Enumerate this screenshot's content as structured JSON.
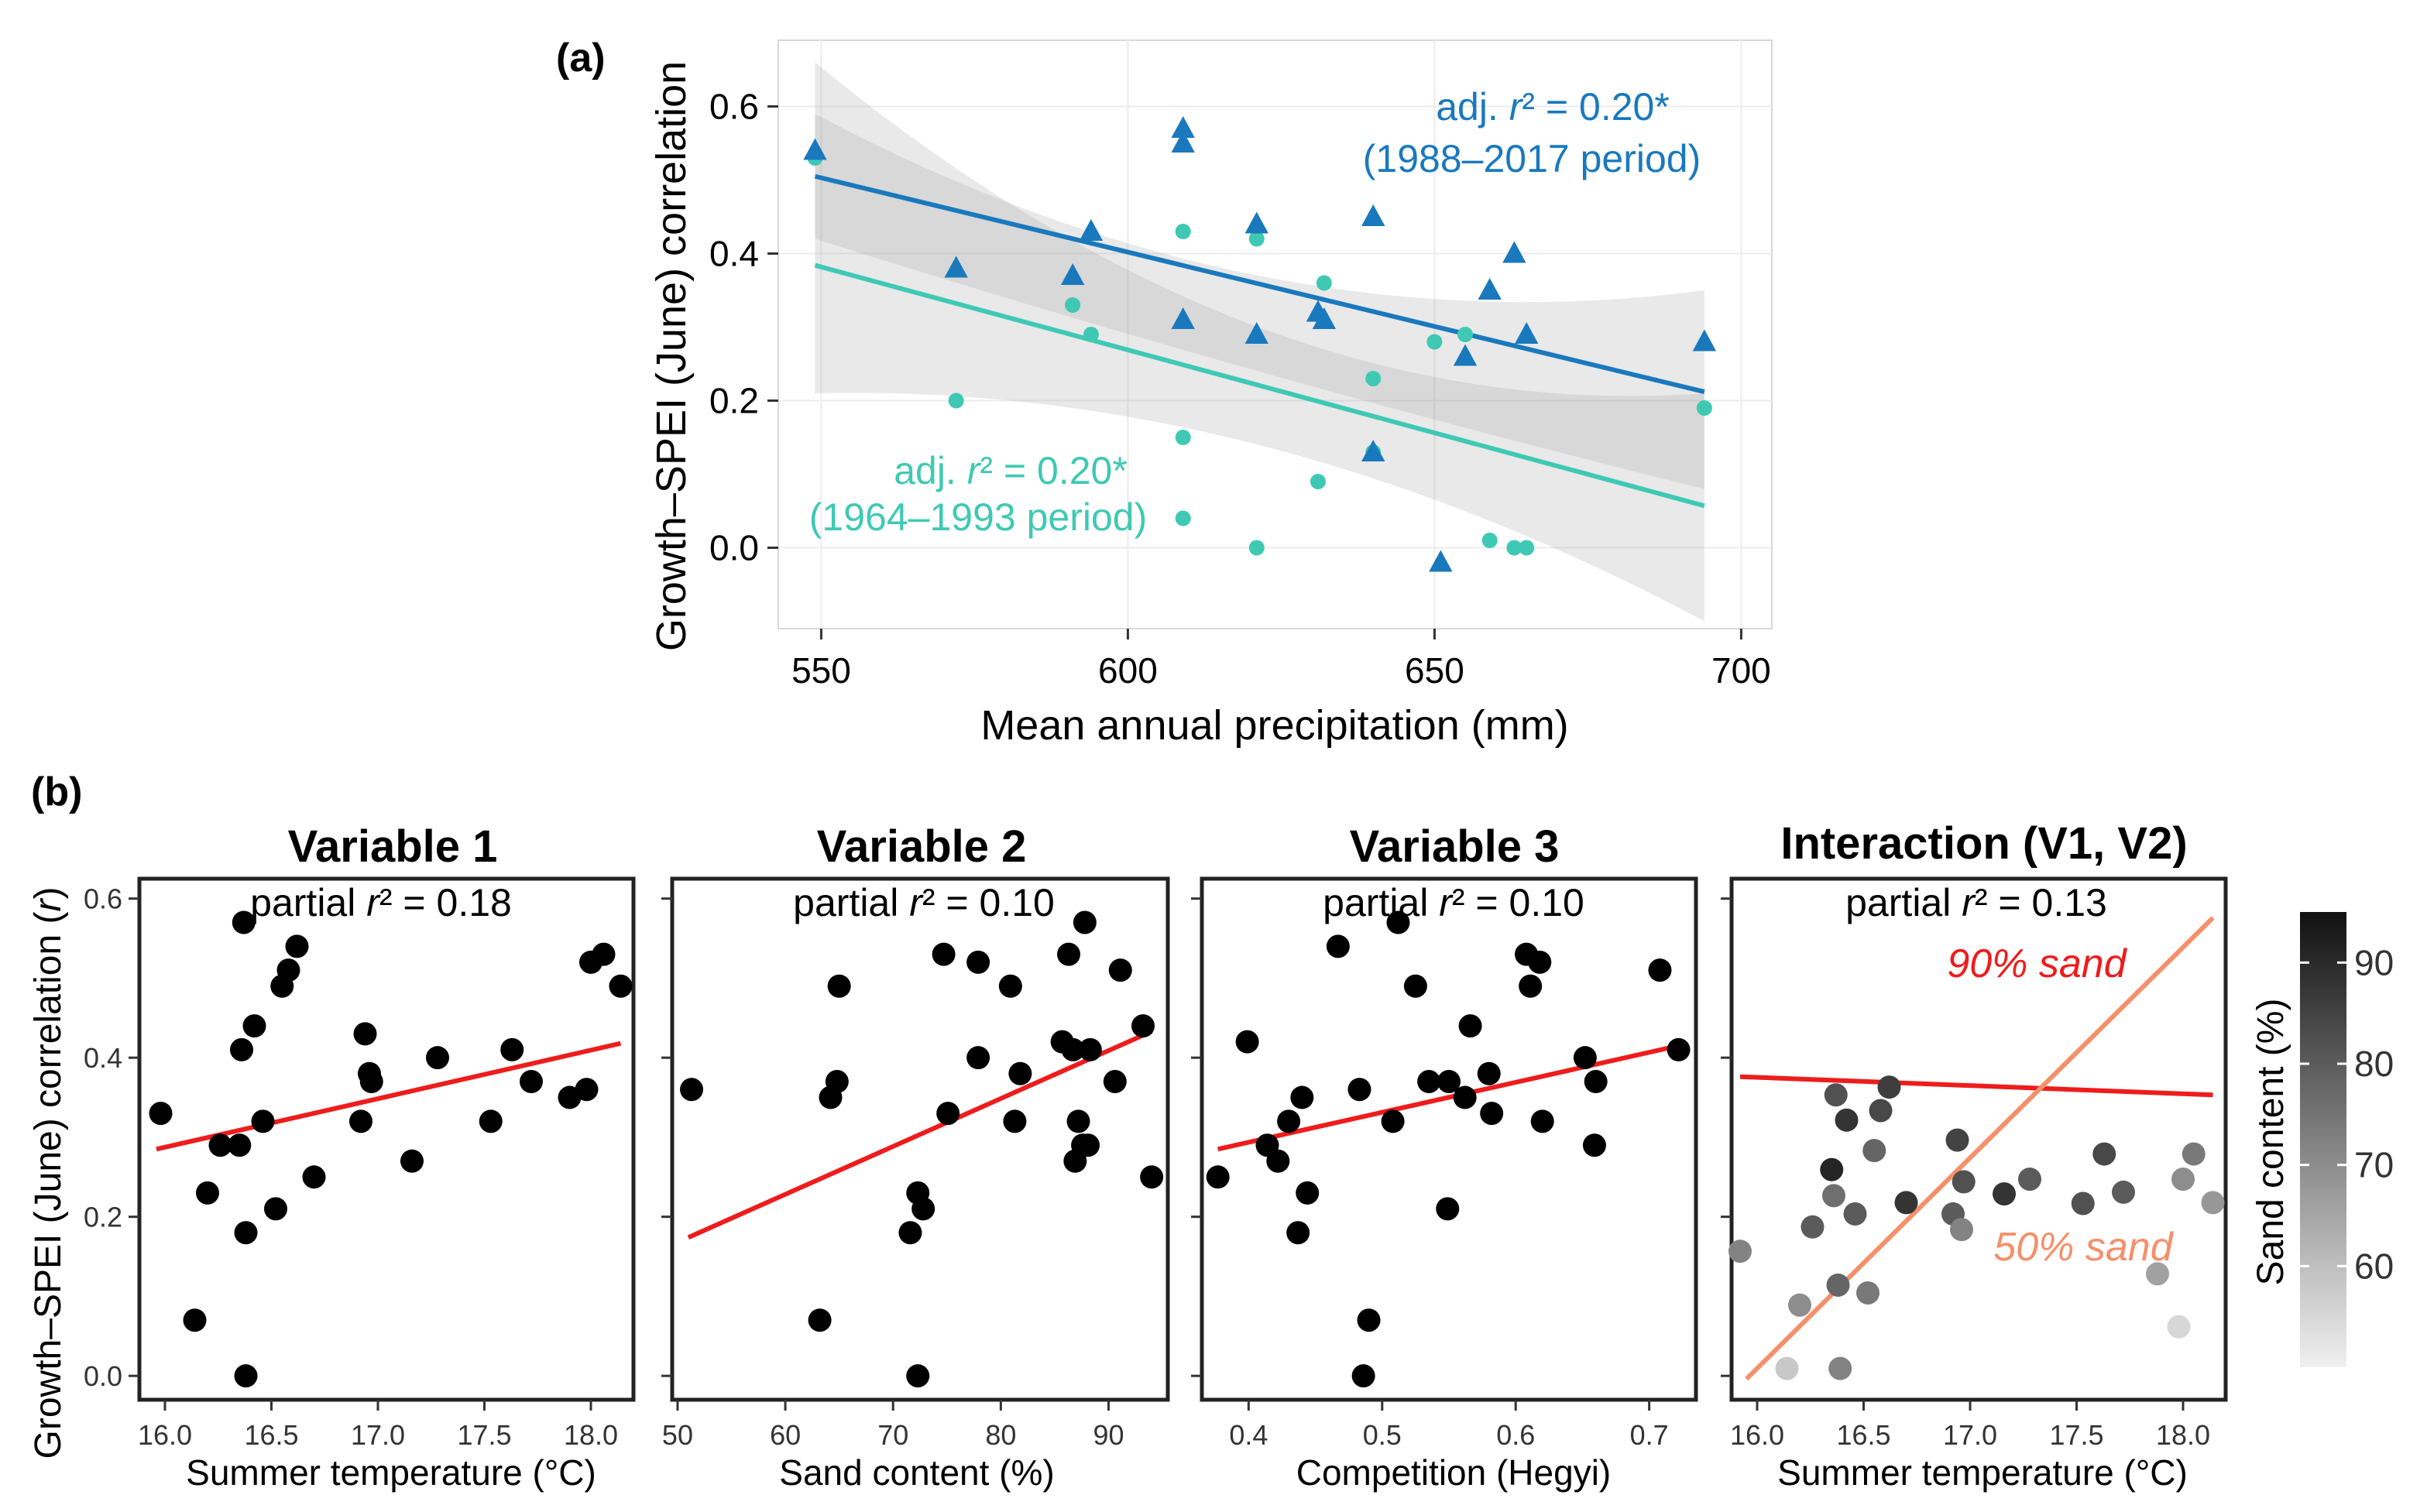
{
  "figure": {
    "panel_a_label": "(a)",
    "panel_b_label": "(b)"
  },
  "chart_data": [
    {
      "id": "a",
      "type": "scatter",
      "xlabel": "Mean annual precipitation (mm)",
      "ylabel": "Growth–SPEI (June) correlation",
      "xlim": [
        543,
        705
      ],
      "ylim": [
        -0.11,
        0.69
      ],
      "xticks": [
        550,
        600,
        650,
        700
      ],
      "yticks": [
        0.0,
        0.2,
        0.4,
        0.6
      ],
      "ytick_labels": [
        "0.0",
        "0.2",
        "0.4",
        "0.6"
      ],
      "grid": true,
      "series": [
        {
          "name": "1988–2017 period",
          "marker": "triangle",
          "color": "#1a79bd",
          "x": [
            549,
            572,
            591,
            594,
            609,
            609,
            609,
            621,
            621,
            631,
            632,
            640,
            640,
            651,
            655,
            659,
            663,
            665,
            694
          ],
          "y": [
            0.54,
            0.38,
            0.37,
            0.43,
            0.57,
            0.55,
            0.31,
            0.44,
            0.29,
            0.32,
            0.31,
            0.45,
            0.13,
            -0.02,
            0.26,
            0.35,
            0.4,
            0.29,
            0.28
          ],
          "fit": {
            "x0": 549,
            "y0": 0.505,
            "x1": 694,
            "y1": 0.212
          },
          "ci": {
            "lower": [
              0.42,
              0.24,
              0.08
            ],
            "upper": [
              0.59,
              0.37,
              0.35
            ],
            "x": [
              549,
              621,
              694
            ]
          },
          "annotation": {
            "line1_prefix": "adj. ",
            "line1_r": "r",
            "line1_suffix": "² = 0.20*",
            "line2": "(1988–2017 period)"
          }
        },
        {
          "name": "1964–1993 period",
          "marker": "circle",
          "color": "#3fc9b4",
          "x": [
            549,
            572,
            591,
            594,
            609,
            609,
            609,
            621,
            621,
            631,
            632,
            640,
            640,
            650,
            655,
            659,
            663,
            665,
            694
          ],
          "y": [
            0.53,
            0.2,
            0.33,
            0.29,
            0.43,
            0.15,
            0.04,
            0.42,
            0.0,
            0.09,
            0.36,
            0.23,
            0.13,
            0.28,
            0.29,
            0.01,
            0.0,
            0.0,
            0.19
          ],
          "fit": {
            "x0": 549,
            "y0": 0.384,
            "x1": 694,
            "y1": 0.057
          },
          "ci": {
            "lower": [
              0.21,
              0.14,
              -0.1
            ],
            "upper": [
              0.66,
              0.3,
              0.21
            ],
            "x": [
              549,
              621,
              694
            ]
          },
          "annotation": {
            "line1_prefix": "adj. ",
            "line1_r": "r",
            "line1_suffix": "² = 0.20*",
            "line2": "(1964–1993 period)"
          }
        }
      ]
    },
    {
      "id": "b1",
      "type": "scatter",
      "title": "Variable 1",
      "subtitle_prefix": "partial ",
      "subtitle_r": "r",
      "subtitle_suffix": "² = 0.18",
      "xlabel": "Summer temperature (°C)",
      "ylabel_prefix": "Growth–SPEI (June) correlation (",
      "ylabel_r": "r",
      "ylabel_suffix": ")",
      "xlim": [
        15.88,
        18.2
      ],
      "ylim": [
        -0.03,
        0.625
      ],
      "xticks": [
        16.0,
        16.5,
        17.0,
        17.5,
        18.0
      ],
      "xtick_labels": [
        "16.0",
        "16.5",
        "17.0",
        "17.5",
        "18.0"
      ],
      "yticks": [
        0.0,
        0.2,
        0.4,
        0.6
      ],
      "ytick_labels": [
        "0.0",
        "0.2",
        "0.4",
        "0.6"
      ],
      "x": [
        15.98,
        16.14,
        16.2,
        16.26,
        16.35,
        16.36,
        16.37,
        16.38,
        16.38,
        16.42,
        16.46,
        16.52,
        16.55,
        16.58,
        16.62,
        16.7,
        16.92,
        16.94,
        16.96,
        16.97,
        17.16,
        17.28,
        17.53,
        17.63,
        17.72,
        17.9,
        17.98,
        18.0,
        18.06,
        18.14
      ],
      "y": [
        0.33,
        0.07,
        0.23,
        0.29,
        0.29,
        0.41,
        0.57,
        0.18,
        0.0,
        0.44,
        0.32,
        0.21,
        0.49,
        0.51,
        0.54,
        0.25,
        0.32,
        0.43,
        0.38,
        0.37,
        0.27,
        0.4,
        0.32,
        0.41,
        0.37,
        0.35,
        0.36,
        0.52,
        0.53,
        0.49
      ],
      "fit": {
        "x0": 15.96,
        "y0": 0.285,
        "x1": 18.14,
        "y1": 0.418
      }
    },
    {
      "id": "b2",
      "type": "scatter",
      "title": "Variable 2",
      "subtitle_prefix": "partial ",
      "subtitle_r": "r",
      "subtitle_suffix": "² = 0.10",
      "xlabel": "Sand content (%)",
      "xlim": [
        49.5,
        95.5
      ],
      "ylim": [
        -0.03,
        0.625
      ],
      "xticks": [
        50,
        60,
        70,
        80,
        90
      ],
      "xtick_labels": [
        "50",
        "60",
        "70",
        "80",
        "90"
      ],
      "yticks": [
        0.0,
        0.2,
        0.4,
        0.6
      ],
      "x": [
        51.3,
        63.2,
        64.2,
        64.8,
        65.0,
        71.6,
        72.3,
        72.3,
        72.8,
        74.7,
        75.1,
        77.9,
        77.9,
        80.9,
        81.3,
        81.8,
        85.7,
        86.3,
        86.7,
        86.9,
        87.2,
        87.6,
        87.8,
        88.1,
        88.3,
        90.6,
        91.1,
        93.2,
        94.0
      ],
      "y": [
        0.36,
        0.07,
        0.35,
        0.37,
        0.49,
        0.18,
        0.23,
        0.0,
        0.21,
        0.53,
        0.33,
        0.52,
        0.4,
        0.49,
        0.32,
        0.38,
        0.42,
        0.53,
        0.41,
        0.27,
        0.32,
        0.29,
        0.57,
        0.29,
        0.41,
        0.37,
        0.51,
        0.44,
        0.25
      ],
      "fit": {
        "x0": 51.0,
        "y0": 0.174,
        "x1": 94.0,
        "y1": 0.433
      }
    },
    {
      "id": "b3",
      "type": "scatter",
      "title": "Variable 3",
      "subtitle_prefix": "partial ",
      "subtitle_r": "r",
      "subtitle_suffix": "² = 0.10",
      "xlabel": "Competition (Hegyi)",
      "xlim": [
        0.365,
        0.735
      ],
      "ylim": [
        -0.03,
        0.625
      ],
      "xticks": [
        0.4,
        0.5,
        0.6,
        0.7
      ],
      "xtick_labels": [
        "0.4",
        "0.5",
        "0.6",
        "0.7"
      ],
      "yticks": [
        0.0,
        0.2,
        0.4,
        0.6
      ],
      "x": [
        0.377,
        0.399,
        0.414,
        0.422,
        0.43,
        0.437,
        0.44,
        0.444,
        0.467,
        0.483,
        0.486,
        0.49,
        0.508,
        0.512,
        0.525,
        0.535,
        0.549,
        0.55,
        0.562,
        0.566,
        0.58,
        0.582,
        0.608,
        0.611,
        0.618,
        0.62,
        0.652,
        0.659,
        0.66,
        0.708,
        0.722
      ],
      "y": [
        0.25,
        0.42,
        0.29,
        0.27,
        0.32,
        0.18,
        0.35,
        0.23,
        0.54,
        0.36,
        0.0,
        0.07,
        0.32,
        0.57,
        0.49,
        0.37,
        0.21,
        0.37,
        0.35,
        0.44,
        0.38,
        0.33,
        0.53,
        0.49,
        0.52,
        0.32,
        0.4,
        0.29,
        0.37,
        0.51,
        0.41
      ],
      "fit": {
        "x0": 0.377,
        "y0": 0.285,
        "x1": 0.722,
        "y1": 0.415
      }
    },
    {
      "id": "b4",
      "type": "scatter",
      "title": "Interaction (V1, V2)",
      "subtitle_prefix": "partial ",
      "subtitle_r": "r",
      "subtitle_suffix": "² = 0.13",
      "xlabel": "Summer temperature (°C)",
      "xlim": [
        15.88,
        18.2
      ],
      "xticks": [
        16.0,
        16.5,
        17.0,
        17.5,
        18.0
      ],
      "xtick_labels": [
        "16.0",
        "16.5",
        "17.0",
        "17.5",
        "18.0"
      ],
      "colorbar": {
        "title": "Sand content (%)",
        "ticks": [
          60,
          70,
          80,
          90
        ],
        "tick_labels": [
          "60",
          "70",
          "80",
          "90"
        ],
        "min": 50,
        "max": 95
      },
      "points": [
        {
          "t": 15.92,
          "sand": 72
        },
        {
          "t": 16.14,
          "sand": 58
        },
        {
          "t": 16.2,
          "sand": 70
        },
        {
          "t": 16.26,
          "sand": 80
        },
        {
          "t": 16.35,
          "sand": 91
        },
        {
          "t": 16.36,
          "sand": 76
        },
        {
          "t": 16.37,
          "sand": 82
        },
        {
          "t": 16.38,
          "sand": 78
        },
        {
          "t": 16.39,
          "sand": 72
        },
        {
          "t": 16.42,
          "sand": 88
        },
        {
          "t": 16.46,
          "sand": 80
        },
        {
          "t": 16.52,
          "sand": 74
        },
        {
          "t": 16.55,
          "sand": 78
        },
        {
          "t": 16.58,
          "sand": 84
        },
        {
          "t": 16.62,
          "sand": 86
        },
        {
          "t": 16.7,
          "sand": 88
        },
        {
          "t": 16.92,
          "sand": 80
        },
        {
          "t": 16.94,
          "sand": 85
        },
        {
          "t": 16.96,
          "sand": 72
        },
        {
          "t": 16.97,
          "sand": 82
        },
        {
          "t": 17.16,
          "sand": 88
        },
        {
          "t": 17.28,
          "sand": 80
        },
        {
          "t": 17.53,
          "sand": 82
        },
        {
          "t": 17.63,
          "sand": 84
        },
        {
          "t": 17.72,
          "sand": 80
        },
        {
          "t": 17.88,
          "sand": 66
        },
        {
          "t": 17.98,
          "sand": 55
        },
        {
          "t": 18.0,
          "sand": 70
        },
        {
          "t": 18.05,
          "sand": 74
        },
        {
          "t": 18.14,
          "sand": 68
        }
      ],
      "lines": [
        {
          "label": "90% sand",
          "color": "#ee1c1c",
          "t0": 15.92,
          "t1": 18.14,
          "f0": 0.62,
          "f1": 0.585
        },
        {
          "label": "50% sand",
          "color": "#f4906a",
          "t0": 15.95,
          "t1": 18.14,
          "f0": 0.04,
          "f1": 0.925
        }
      ]
    }
  ]
}
